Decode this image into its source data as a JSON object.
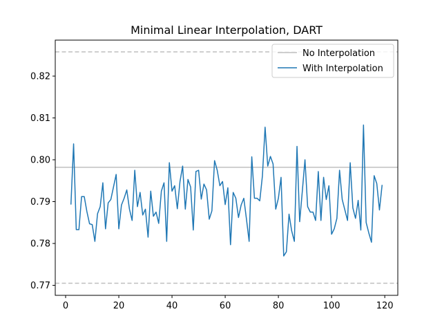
{
  "chart_data": {
    "type": "line",
    "title": "Minimal Linear Interpolation, DART",
    "xlabel": "",
    "ylabel": "",
    "xlim": [
      -3.9,
      124.9
    ],
    "ylim": [
      0.7676,
      0.8286
    ],
    "x_ticks": [
      0,
      20,
      40,
      60,
      80,
      100,
      120
    ],
    "y_ticks": [
      0.77,
      0.78,
      0.79,
      0.8,
      0.81,
      0.82
    ],
    "x_tick_labels": [
      "0",
      "20",
      "40",
      "60",
      "80",
      "100",
      "120"
    ],
    "y_tick_labels": [
      "0.77",
      "0.78",
      "0.79",
      "0.80",
      "0.81",
      "0.82"
    ],
    "grid": false,
    "legend_position": "upper right",
    "reference_lines": {
      "no_interpolation_mean": 0.7982,
      "upper_bound": 0.8258,
      "lower_bound": 0.7705
    },
    "series": [
      {
        "name": "No Interpolation",
        "color": "#bfbfbf",
        "x": [
          -3.9,
          124.9
        ],
        "values": [
          0.7982,
          0.7982
        ]
      },
      {
        "name": "With Interpolation",
        "color": "#1f77b4",
        "x": [
          2,
          3,
          4,
          5,
          6,
          7,
          8,
          9,
          10,
          11,
          12,
          13,
          14,
          15,
          16,
          17,
          18,
          19,
          20,
          21,
          22,
          23,
          24,
          25,
          26,
          27,
          28,
          29,
          30,
          31,
          32,
          33,
          34,
          35,
          36,
          37,
          38,
          39,
          40,
          41,
          42,
          43,
          44,
          45,
          46,
          47,
          48,
          49,
          50,
          51,
          52,
          53,
          54,
          55,
          56,
          57,
          58,
          59,
          60,
          61,
          62,
          63,
          64,
          65,
          66,
          67,
          68,
          69,
          70,
          71,
          72,
          73,
          74,
          75,
          76,
          77,
          78,
          79,
          80,
          81,
          82,
          83,
          84,
          85,
          86,
          87,
          88,
          89,
          90,
          91,
          92,
          93,
          94,
          95,
          96,
          97,
          98,
          99,
          100,
          101,
          102,
          103,
          104,
          105,
          106,
          107,
          108,
          109,
          110,
          111,
          112,
          113,
          114,
          115,
          116,
          117,
          118,
          119
        ],
        "values": [
          0.7893,
          0.8038,
          0.7833,
          0.7833,
          0.7912,
          0.7912,
          0.7876,
          0.7847,
          0.7845,
          0.7805,
          0.7871,
          0.7888,
          0.7945,
          0.7835,
          0.7897,
          0.7905,
          0.7935,
          0.7965,
          0.7835,
          0.7892,
          0.7908,
          0.7928,
          0.7882,
          0.7855,
          0.7975,
          0.7888,
          0.7922,
          0.7868,
          0.7882,
          0.7815,
          0.7925,
          0.7865,
          0.7875,
          0.7848,
          0.7925,
          0.7945,
          0.7805,
          0.7993,
          0.7925,
          0.7938,
          0.7883,
          0.7948,
          0.7985,
          0.7882,
          0.7953,
          0.7935,
          0.7832,
          0.7972,
          0.7975,
          0.7906,
          0.7942,
          0.7928,
          0.7858,
          0.7878,
          0.7998,
          0.7975,
          0.7938,
          0.7948,
          0.7893,
          0.7933,
          0.7797,
          0.7922,
          0.7908,
          0.7862,
          0.7892,
          0.7908,
          0.7858,
          0.7805,
          0.8007,
          0.7908,
          0.7908,
          0.7902,
          0.7962,
          0.8078,
          0.7985,
          0.8008,
          0.799,
          0.7882,
          0.7908,
          0.7958,
          0.777,
          0.778,
          0.787,
          0.783,
          0.7805,
          0.8032,
          0.7852,
          0.7925,
          0.8,
          0.7888,
          0.7875,
          0.7875,
          0.7855,
          0.7972,
          0.7855,
          0.7958,
          0.7905,
          0.7938,
          0.7822,
          0.7835,
          0.786,
          0.7975,
          0.7905,
          0.788,
          0.7855,
          0.7993,
          0.7885,
          0.786,
          0.7903,
          0.7832,
          0.8083,
          0.785,
          0.7825,
          0.7803,
          0.7962,
          0.7943,
          0.788,
          0.794
        ]
      }
    ]
  }
}
